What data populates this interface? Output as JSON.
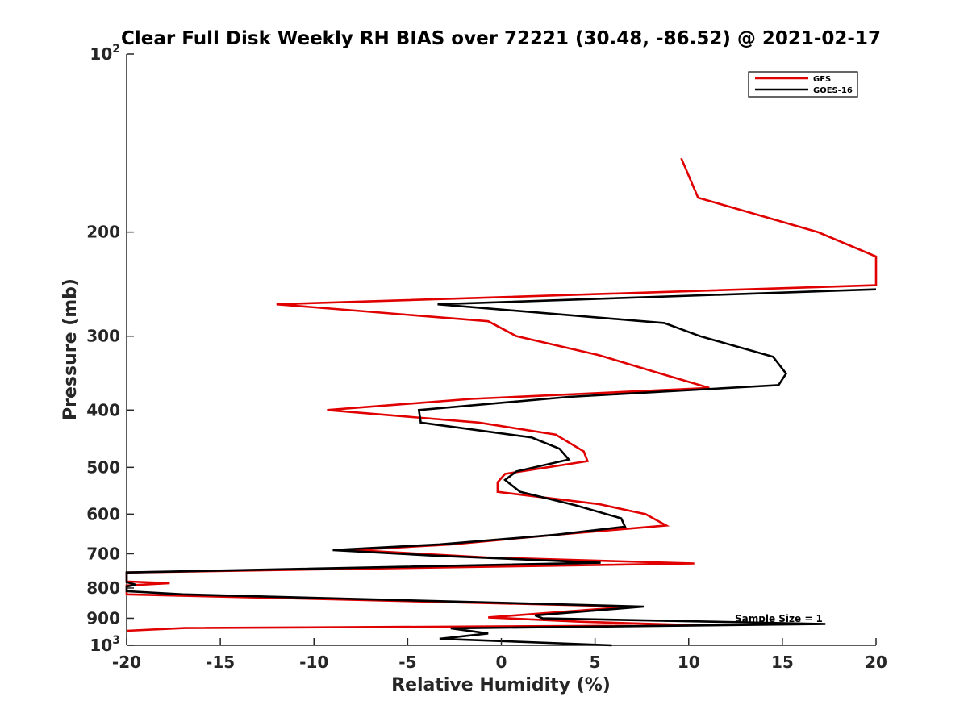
{
  "chart_data": {
    "type": "line",
    "title": "Clear Full Disk Weekly RH BIAS over 72221 (30.48, -86.52) @ 2021-02-17",
    "xlabel": "Relative Humidity (%)",
    "ylabel": "Pressure (mb)",
    "xlim": [
      -20,
      20
    ],
    "ylim": [
      100,
      1000
    ],
    "y_scale": "log",
    "y_reversed": true,
    "x_ticks": [
      "-20",
      "-15",
      "-10",
      "-5",
      "0",
      "5",
      "10",
      "15",
      "20"
    ],
    "x_tick_values": [
      -20,
      -15,
      -10,
      -5,
      0,
      5,
      10,
      15,
      20
    ],
    "y_ticks": [
      {
        "value": 100,
        "base": "10",
        "exp": "2"
      },
      {
        "value": 200,
        "label": "200"
      },
      {
        "value": 300,
        "label": "300"
      },
      {
        "value": 400,
        "label": "400"
      },
      {
        "value": 500,
        "label": "500"
      },
      {
        "value": 600,
        "label": "600"
      },
      {
        "value": 700,
        "label": "700"
      },
      {
        "value": 800,
        "label": "800"
      },
      {
        "value": 900,
        "label": "900"
      },
      {
        "value": 1000,
        "base": "10",
        "exp": "3"
      }
    ],
    "grid": false,
    "legend_position": "top-right",
    "annotation": "Sample Size = 1",
    "series": [
      {
        "name": "GFS",
        "color": "#e00000",
        "points": [
          [
            9.6,
            150
          ],
          [
            10.5,
            175
          ],
          [
            16.9,
            200
          ],
          [
            20,
            220
          ],
          [
            20,
            246
          ],
          [
            -12,
            265
          ],
          [
            -0.7,
            283
          ],
          [
            0.8,
            300
          ],
          [
            5.2,
            323
          ],
          [
            8.5,
            347
          ],
          [
            11.1,
            367
          ],
          [
            -1.6,
            383
          ],
          [
            -9.3,
            400
          ],
          [
            -1.2,
            420
          ],
          [
            2.9,
            440
          ],
          [
            4.4,
            470
          ],
          [
            4.6,
            488
          ],
          [
            0.2,
            513
          ],
          [
            -0.2,
            530
          ],
          [
            -0.2,
            550
          ],
          [
            5.2,
            577
          ],
          [
            7.7,
            600
          ],
          [
            8.8,
            627
          ],
          [
            2.9,
            650
          ],
          [
            -2.7,
            675
          ],
          [
            -7.9,
            690
          ],
          [
            -0.8,
            710
          ],
          [
            10.3,
            727
          ],
          [
            -20,
            753
          ],
          [
            -20,
            780
          ],
          [
            -17.7,
            785
          ],
          [
            -20,
            792
          ],
          [
            -20,
            820
          ],
          [
            7.0,
            860
          ],
          [
            -0.7,
            897
          ],
          [
            4.2,
            912
          ],
          [
            10.6,
            925
          ],
          [
            -16.9,
            935
          ],
          [
            -20,
            945
          ]
        ]
      },
      {
        "name": "GOES-16",
        "color": "#000000",
        "points": [
          [
            20,
            250
          ],
          [
            -3.4,
            265
          ],
          [
            8.7,
            285
          ],
          [
            10.6,
            300
          ],
          [
            14.5,
            325
          ],
          [
            15.2,
            347
          ],
          [
            14.8,
            363
          ],
          [
            3.6,
            380
          ],
          [
            -4.4,
            400
          ],
          [
            -4.3,
            420
          ],
          [
            1.6,
            445
          ],
          [
            3.1,
            465
          ],
          [
            3.6,
            485
          ],
          [
            0.8,
            508
          ],
          [
            0.2,
            525
          ],
          [
            1.0,
            550
          ],
          [
            4.0,
            580
          ],
          [
            6.4,
            610
          ],
          [
            6.6,
            630
          ],
          [
            2.9,
            650
          ],
          [
            -3.3,
            675
          ],
          [
            -9.0,
            690
          ],
          [
            -3.7,
            705
          ],
          [
            5.3,
            725
          ],
          [
            -20,
            753
          ],
          [
            -20,
            782
          ],
          [
            -19.5,
            790
          ],
          [
            -20,
            795
          ],
          [
            -20,
            810
          ],
          [
            -17.0,
            820
          ],
          [
            7.6,
            860
          ],
          [
            1.8,
            890
          ],
          [
            2.2,
            900
          ],
          [
            17.3,
            920
          ],
          [
            -2.7,
            936
          ],
          [
            -0.7,
            955
          ],
          [
            -3.3,
            975
          ],
          [
            5.9,
            1000
          ]
        ]
      }
    ]
  }
}
